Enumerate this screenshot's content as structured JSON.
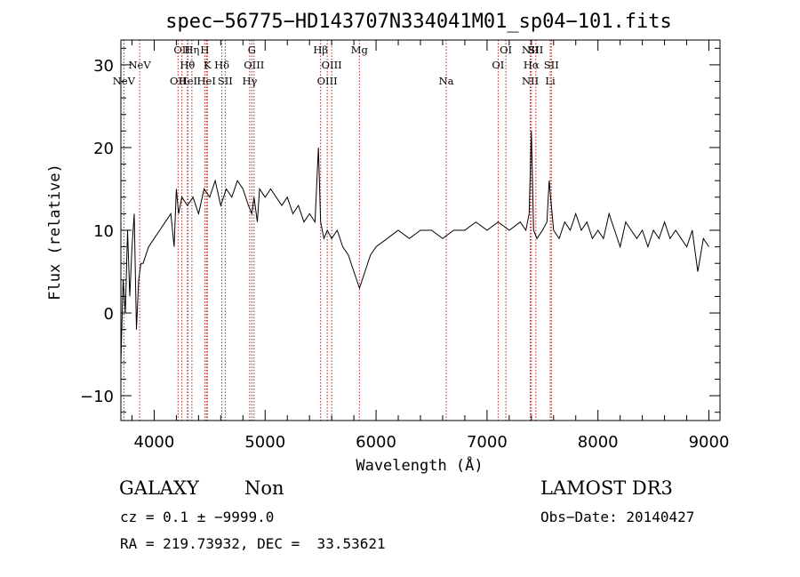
{
  "chart_data": {
    "type": "line",
    "title": "spec−56775−HD143707N334041M01_sp04−101.fits",
    "xlabel": "Wavelength (Å)",
    "ylabel": "Flux (relative)",
    "xlim": [
      3700,
      9100
    ],
    "ylim": [
      -13,
      33
    ],
    "xticks": [
      4000,
      5000,
      6000,
      7000,
      8000,
      9000
    ],
    "yticks": [
      -10,
      0,
      10,
      20,
      30
    ],
    "series": [
      {
        "name": "flux",
        "x": [
          3700,
          3720,
          3740,
          3760,
          3780,
          3800,
          3820,
          3840,
          3860,
          3880,
          3900,
          3950,
          4000,
          4050,
          4100,
          4150,
          4180,
          4200,
          4220,
          4250,
          4300,
          4350,
          4400,
          4450,
          4500,
          4550,
          4600,
          4650,
          4700,
          4750,
          4800,
          4850,
          4880,
          4900,
          4930,
          4950,
          5000,
          5050,
          5100,
          5150,
          5200,
          5250,
          5300,
          5350,
          5400,
          5450,
          5480,
          5500,
          5530,
          5560,
          5600,
          5650,
          5700,
          5750,
          5800,
          5850,
          5900,
          5950,
          6000,
          6100,
          6200,
          6300,
          6400,
          6500,
          6600,
          6700,
          6800,
          6900,
          7000,
          7100,
          7200,
          7300,
          7350,
          7380,
          7400,
          7420,
          7450,
          7500,
          7540,
          7560,
          7580,
          7600,
          7650,
          7700,
          7750,
          7800,
          7850,
          7900,
          7950,
          8000,
          8050,
          8100,
          8150,
          8200,
          8250,
          8300,
          8350,
          8400,
          8450,
          8500,
          8550,
          8600,
          8650,
          8700,
          8750,
          8800,
          8850,
          8900,
          8950,
          9000
        ],
        "y": [
          -6,
          4,
          0,
          10,
          2,
          8,
          12,
          -2,
          4,
          6,
          6,
          8,
          9,
          10,
          11,
          12,
          8,
          15,
          12,
          14,
          13,
          14,
          12,
          15,
          14,
          16,
          13,
          15,
          14,
          16,
          15,
          13,
          12,
          14,
          11,
          15,
          14,
          15,
          14,
          13,
          14,
          12,
          13,
          11,
          12,
          11,
          20,
          11,
          9,
          10,
          9,
          10,
          8,
          7,
          5,
          3,
          5,
          7,
          8,
          9,
          10,
          9,
          10,
          10,
          9,
          10,
          10,
          11,
          10,
          11,
          10,
          11,
          10,
          12,
          22,
          10,
          9,
          10,
          11,
          16,
          13,
          10,
          9,
          11,
          10,
          12,
          10,
          11,
          9,
          10,
          9,
          12,
          10,
          8,
          11,
          10,
          9,
          10,
          8,
          10,
          9,
          11,
          9,
          10,
          9,
          8,
          10,
          5,
          9,
          8
        ]
      }
    ],
    "markers": [
      {
        "wavelength": 3727,
        "label": "NeV",
        "row": 3
      },
      {
        "wavelength": 3869,
        "label": "NeV",
        "row": 2
      },
      {
        "wavelength": 4215,
        "label": "OII",
        "row": 3
      },
      {
        "wavelength": 4250,
        "label": "OII",
        "row": 1
      },
      {
        "wavelength": 4340,
        "label": "Hη",
        "row": 1
      },
      {
        "wavelength": 4300,
        "label": "Hθ",
        "row": 2
      },
      {
        "wavelength": 4304,
        "label": "HeI",
        "row": 3
      },
      {
        "wavelength": 4456,
        "label": "H",
        "row": 1
      },
      {
        "wavelength": 4480,
        "label": "K",
        "row": 2
      },
      {
        "wavelength": 4471,
        "label": "HeI",
        "row": 3
      },
      {
        "wavelength": 4610,
        "label": "Hδ",
        "row": 2
      },
      {
        "wavelength": 4640,
        "label": "SII",
        "row": 3
      },
      {
        "wavelength": 4880,
        "label": "G",
        "row": 1
      },
      {
        "wavelength": 4900,
        "label": "OIII",
        "row": 2
      },
      {
        "wavelength": 4861,
        "label": "Hγ",
        "row": 3
      },
      {
        "wavelength": 5500,
        "label": "Hβ",
        "row": 1
      },
      {
        "wavelength": 5600,
        "label": "OIII",
        "row": 2
      },
      {
        "wavelength": 5560,
        "label": "OIII",
        "row": 3
      },
      {
        "wavelength": 5850,
        "label": "Mg",
        "row": 1
      },
      {
        "wavelength": 6633,
        "label": "Na",
        "row": 3
      },
      {
        "wavelength": 7170,
        "label": "OI",
        "row": 1
      },
      {
        "wavelength": 7100,
        "label": "OI",
        "row": 2
      },
      {
        "wavelength": 7390,
        "label": "NII",
        "row": 1
      },
      {
        "wavelength": 7440,
        "label": "SII",
        "row": 1
      },
      {
        "wavelength": 7400,
        "label": "Hα",
        "row": 2
      },
      {
        "wavelength": 7390,
        "label": "NII",
        "row": 3
      },
      {
        "wavelength": 7580,
        "label": "SII",
        "row": 2
      },
      {
        "wavelength": 7570,
        "label": "Li",
        "row": 3
      }
    ]
  },
  "footer": {
    "object_class": "GALAXY",
    "subclass": "Non",
    "survey": "LAMOST DR3",
    "cz": "cz = 0.1 ± −9999.0",
    "obs_date": "Obs−Date: 20140427",
    "coords": "RA = 219.73932, DEC =  33.53621"
  },
  "colors": {
    "spectrum": "#000000",
    "marker": "#b22222",
    "background": "#ffffff"
  }
}
